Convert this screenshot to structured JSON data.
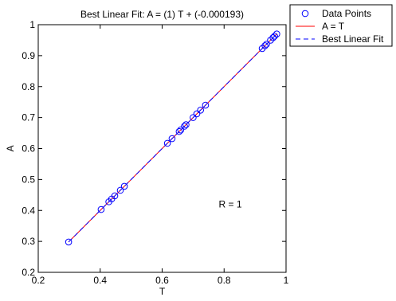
{
  "chart_data": {
    "type": "scatter",
    "title": "Best Linear Fit:  A = (1) T + (-0.000193)",
    "xlabel": "T",
    "ylabel": "A",
    "xlim": [
      0.2,
      1
    ],
    "ylim": [
      0.2,
      1
    ],
    "x_ticks": [
      0.2,
      0.4,
      0.6,
      0.8,
      1
    ],
    "y_ticks": [
      0.2,
      0.3,
      0.4,
      0.5,
      0.6,
      0.7,
      0.8,
      0.9,
      1
    ],
    "x_tick_labels": [
      "0.2",
      "0.4",
      "0.6",
      "0.8",
      "1"
    ],
    "y_tick_labels": [
      "0.2",
      "0.3",
      "0.4",
      "0.5",
      "0.6",
      "0.7",
      "0.8",
      "0.9",
      "1"
    ],
    "grid": false,
    "legend_position": "outside top-right",
    "annotation": "R = 1",
    "annotation_position": [
      0.82,
      0.42
    ],
    "series": [
      {
        "name": "Data Points",
        "style": "marker-circle",
        "color": "#0000ff",
        "points": [
          [
            0.298,
            0.298
          ],
          [
            0.403,
            0.403
          ],
          [
            0.428,
            0.428
          ],
          [
            0.437,
            0.437
          ],
          [
            0.447,
            0.447
          ],
          [
            0.465,
            0.465
          ],
          [
            0.478,
            0.478
          ],
          [
            0.617,
            0.617
          ],
          [
            0.632,
            0.632
          ],
          [
            0.655,
            0.655
          ],
          [
            0.66,
            0.66
          ],
          [
            0.672,
            0.672
          ],
          [
            0.677,
            0.677
          ],
          [
            0.7,
            0.7
          ],
          [
            0.712,
            0.712
          ],
          [
            0.724,
            0.724
          ],
          [
            0.74,
            0.74
          ],
          [
            0.923,
            0.923
          ],
          [
            0.932,
            0.932
          ],
          [
            0.937,
            0.937
          ],
          [
            0.95,
            0.95
          ],
          [
            0.958,
            0.958
          ],
          [
            0.963,
            0.963
          ],
          [
            0.97,
            0.97
          ]
        ]
      },
      {
        "name": "A = T",
        "style": "solid-line",
        "color": "#ff0000",
        "x": [
          0.298,
          0.97
        ],
        "y": [
          0.298,
          0.97
        ]
      },
      {
        "name": "Best Linear Fit",
        "style": "dashed-line",
        "color": "#0000ff",
        "x": [
          0.298,
          0.97
        ],
        "y": [
          0.298,
          0.97
        ]
      }
    ]
  }
}
